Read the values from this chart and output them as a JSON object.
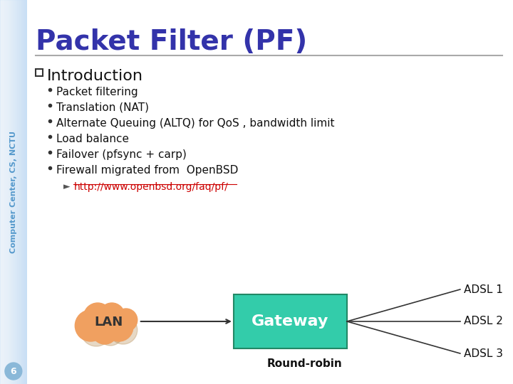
{
  "title": "Packet Filter (PF)",
  "title_color": "#3333aa",
  "title_fontsize": 28,
  "sidebar_text": "Computer Center, CS, NCTU",
  "sidebar_bg": "#c8dff5",
  "sidebar_text_color": "#5599cc",
  "main_bg": "#ffffff",
  "section_header": "Introduction",
  "bullet_items": [
    "Packet filtering",
    "Translation (NAT)",
    "Alternate Queuing (ALTQ) for QoS , bandwidth limit",
    "Load balance",
    "Failover (pfsync + carp)",
    "Firewall migrated from  OpenBSD"
  ],
  "url_text": "http://www.openbsd.org/faq/pf/",
  "url_color": "#cc0000",
  "gateway_label": "Gateway",
  "gateway_color": "#33ccaa",
  "lan_label": "LAN",
  "lan_color": "#f0a060",
  "adsl_labels": [
    "ADSL 1",
    "ADSL 2",
    "ADSL 3"
  ],
  "roundrobin_label": "Round-robin",
  "page_number": "6",
  "page_num_color": "#5599cc",
  "divider_color": "#aaaaaa",
  "bullet_fontsize": 11,
  "header_fontsize": 16
}
